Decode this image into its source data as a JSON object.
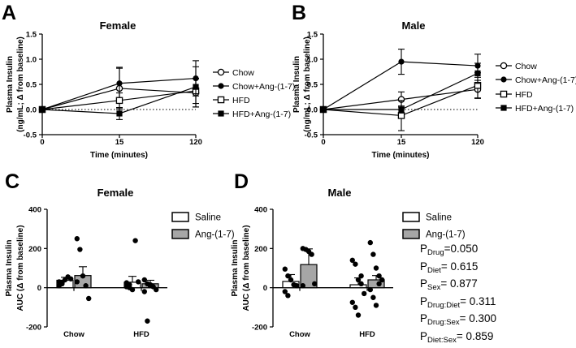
{
  "panels": {
    "A": {
      "label": "A"
    },
    "B": {
      "label": "B"
    },
    "C": {
      "label": "C"
    },
    "D": {
      "label": "D"
    }
  },
  "stats": {
    "drug": {
      "prefix": "P",
      "sub": "Drug",
      "value": "=0.050"
    },
    "diet": {
      "prefix": "P",
      "sub": "Diet",
      "value": "= 0.615"
    },
    "sex": {
      "prefix": "P",
      "sub": "Sex",
      "value": "= 0.877"
    },
    "drug_diet": {
      "prefix": "P",
      "sub": "Drug:Diet",
      "value": "= 0.311"
    },
    "drug_sex": {
      "prefix": "P",
      "sub": "Drug:Sex",
      "value": "= 0.300"
    },
    "diet_sex": {
      "prefix": "P",
      "sub": "Diet:Sex",
      "value": "= 0.859"
    }
  },
  "colors": {
    "ink": "#000000",
    "grey_bar": "#a6a6a6",
    "white": "#ffffff"
  },
  "chart_data": [
    {
      "id": "A",
      "type": "line",
      "title": "Female",
      "xlabel": "Time (minutes)",
      "ylabel": [
        "Plasma Insulin",
        "(ng/mL; Δ from baseline)"
      ],
      "categories": [
        "0",
        "15",
        "120"
      ],
      "yticks": [
        "-0.5",
        "0.0",
        "0.5",
        "1.0",
        "1.5"
      ],
      "ylim": [
        -0.5,
        1.5
      ],
      "zero_line": "dotted",
      "legend": [
        "Chow",
        "Chow+Ang-(1-7)",
        "HFD",
        "HFD+Ang-(1-7)"
      ],
      "series": [
        {
          "name": "Chow",
          "marker": "open-circle",
          "values": [
            0,
            0.42,
            0.33
          ],
          "errors": [
            0,
            0.42,
            0.28
          ]
        },
        {
          "name": "Chow+Ang-(1-7)",
          "marker": "filled-circle",
          "values": [
            0,
            0.52,
            0.62
          ],
          "errors": [
            0,
            0.3,
            0.35
          ]
        },
        {
          "name": "HFD",
          "marker": "open-square",
          "values": [
            0,
            0.18,
            0.37
          ],
          "errors": [
            0,
            0.15,
            0.25
          ]
        },
        {
          "name": "HFD+Ang-(1-7)",
          "marker": "filled-square",
          "values": [
            0,
            -0.08,
            0.45
          ],
          "errors": [
            0,
            0.12,
            0.4
          ]
        }
      ]
    },
    {
      "id": "B",
      "type": "line",
      "title": "Male",
      "xlabel": "Time (minutes)",
      "ylabel": [
        "Plasma Insulin",
        "(ng/mL; Δ from baseline)"
      ],
      "categories": [
        "0",
        "15",
        "120"
      ],
      "yticks": [
        "-0.5",
        "0.0",
        "0.5",
        "1.0",
        "1.5"
      ],
      "ylim": [
        -0.5,
        1.5
      ],
      "zero_line": "dotted",
      "legend": [
        "Chow",
        "Chow+Ang-(1-7)",
        "HFD",
        "HFD+Ang-(1-7)"
      ],
      "series": [
        {
          "name": "Chow",
          "marker": "open-circle",
          "values": [
            0,
            0.2,
            0.4
          ],
          "errors": [
            0,
            0.15,
            0.18
          ]
        },
        {
          "name": "Chow+Ang-(1-7)",
          "marker": "filled-circle",
          "values": [
            0,
            0.95,
            0.87
          ],
          "errors": [
            0,
            0.25,
            0.23
          ]
        },
        {
          "name": "HFD",
          "marker": "open-square",
          "values": [
            0,
            -0.12,
            0.48
          ],
          "errors": [
            0,
            0.3,
            0.25
          ]
        },
        {
          "name": "HFD+Ang-(1-7)",
          "marker": "filled-square",
          "values": [
            0,
            0.0,
            0.72
          ],
          "errors": [
            0,
            0.07,
            0.2
          ]
        }
      ]
    },
    {
      "id": "C",
      "type": "bar",
      "title": "Female",
      "ylabel": [
        "Plasma Insulin",
        "AUC (Δ from baseline)"
      ],
      "categories": [
        "Chow",
        "HFD"
      ],
      "yticks": [
        "-200",
        "0",
        "200",
        "400"
      ],
      "ylim": [
        -200,
        400
      ],
      "legend": [
        "Saline",
        "Ang-(1-7)"
      ],
      "series": [
        {
          "name": "Saline",
          "values": [
            38,
            28
          ],
          "errors": [
            15,
            30
          ],
          "points": [
            [
              10,
              25,
              40,
              55,
              45,
              30,
              20
            ],
            [
              5,
              15,
              -10,
              240,
              30,
              25,
              0
            ]
          ]
        },
        {
          "name": "Ang-(1-7)",
          "values": [
            62,
            20
          ],
          "errors": [
            45,
            18
          ],
          "points": [
            [
              250,
              195,
              60,
              10,
              -55,
              30
            ],
            [
              40,
              20,
              10,
              5,
              -10,
              -20,
              -170,
              15
            ]
          ]
        }
      ]
    },
    {
      "id": "D",
      "type": "bar",
      "title": "Male",
      "ylabel": [
        "Plasma Insulin",
        "AUC (Δ from baseline)"
      ],
      "categories": [
        "Chow",
        "HFD"
      ],
      "yticks": [
        "-200",
        "0",
        "200",
        "400"
      ],
      "ylim": [
        -200,
        400
      ],
      "legend": [
        "Saline",
        "Ang-(1-7)"
      ],
      "series": [
        {
          "name": "Saline",
          "values": [
            32,
            15
          ],
          "errors": [
            35,
            35
          ],
          "points": [
            [
              95,
              60,
              40,
              15,
              10,
              -20,
              -40
            ],
            [
              140,
              120,
              40,
              20,
              -30,
              -75,
              -100,
              -140,
              60
            ]
          ]
        },
        {
          "name": "Ang-(1-7)",
          "values": [
            118,
            40
          ],
          "errors": [
            80,
            22
          ],
          "points": [
            [
              200,
              195,
              185,
              170,
              20,
              10
            ],
            [
              230,
              170,
              100,
              60,
              40,
              -10,
              -50,
              -90,
              20
            ]
          ]
        }
      ]
    }
  ]
}
